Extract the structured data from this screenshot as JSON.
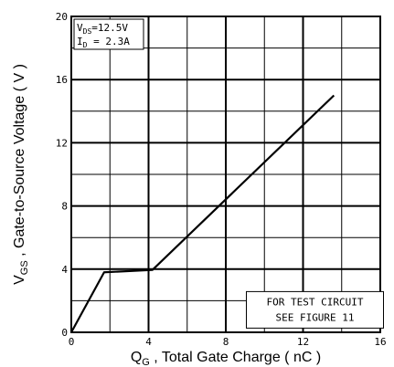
{
  "chart_data": {
    "type": "line",
    "title": "",
    "xlabel": {
      "main": "Q",
      "sub": "G",
      "rest": " , Total Gate Charge ( nC )"
    },
    "ylabel": {
      "main": "V",
      "sub": "GS",
      "rest": " , Gate-to-Source Voltage ( V )"
    },
    "xlim": [
      0,
      16
    ],
    "ylim": [
      0,
      20
    ],
    "x_ticks": [
      0,
      4,
      8,
      12,
      16
    ],
    "x_tick_labels": [
      "0",
      "4",
      "8",
      "12",
      "16"
    ],
    "y_ticks": [
      0,
      4,
      8,
      12,
      16,
      20
    ],
    "y_tick_labels": [
      "0",
      "4",
      "8",
      "12",
      "16",
      "20"
    ],
    "grid": true,
    "series": [
      {
        "x": [
          0,
          1.7,
          4.2,
          13.6
        ],
        "y": [
          0,
          3.8,
          3.95,
          15.0
        ]
      }
    ],
    "conditions": [
      {
        "main": "V",
        "sub": "DS",
        "rest": "=12.5V"
      },
      {
        "main": "I",
        "sub": "D",
        "rest": " = 2.3A"
      }
    ],
    "note": [
      "FOR TEST CIRCUIT",
      "SEE FIGURE 11"
    ],
    "line_color": "#000000"
  }
}
